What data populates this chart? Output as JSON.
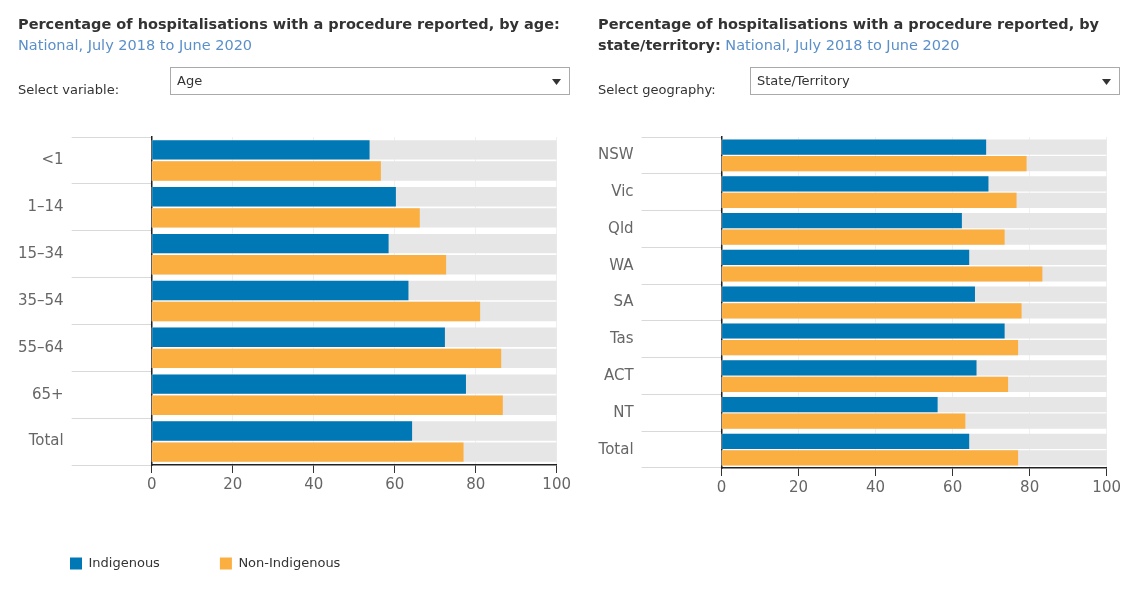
{
  "chart_data": [
    {
      "type": "bar",
      "orientation": "horizontal",
      "title": "Percentage of hospitalisations with a procedure reported, by age:",
      "subtitle": "National, July 2018 to June 2020",
      "annotations": [
        "Select variable:",
        "Age"
      ],
      "categories": [
        "<1",
        "1–14",
        "15–34",
        "35–54",
        "55–64",
        "65+",
        "Total"
      ],
      "series": [
        {
          "name": "Indigenous",
          "color": "#0078b5",
          "values": [
            53.8,
            60.3,
            58.5,
            63.4,
            72.4,
            77.6,
            64.3
          ]
        },
        {
          "name": "Non-Indigenous",
          "color": "#fcaf41",
          "values": [
            56.6,
            66.2,
            72.7,
            81.1,
            86.3,
            86.7,
            77.0
          ]
        }
      ],
      "xlim": [
        0,
        100
      ],
      "xticks": [
        0,
        20,
        40,
        60,
        80,
        100
      ],
      "grid": true,
      "legend": "bottom"
    },
    {
      "type": "bar",
      "orientation": "horizontal",
      "title": "Percentage of hospitalisations with a procedure reported, by state/territory:",
      "subtitle": "National, July 2018 to June 2020",
      "annotations": [
        "Select geography:",
        "State/Territory"
      ],
      "categories": [
        "NSW",
        "Vic",
        "Qld",
        "WA",
        "SA",
        "Tas",
        "ACT",
        "NT",
        "Total"
      ],
      "series": [
        {
          "color": "#0078b5",
          "values": [
            68.7,
            69.3,
            62.4,
            64.3,
            65.8,
            73.5,
            66.2,
            56.1,
            64.3
          ]
        },
        {
          "color": "#fcaf41",
          "values": [
            79.2,
            76.6,
            73.5,
            83.3,
            77.9,
            77.0,
            74.4,
            63.3,
            77.0
          ]
        }
      ],
      "xlim": [
        0,
        100
      ],
      "xticks": [
        0,
        20,
        40,
        60,
        80,
        100
      ],
      "grid": true
    }
  ]
}
